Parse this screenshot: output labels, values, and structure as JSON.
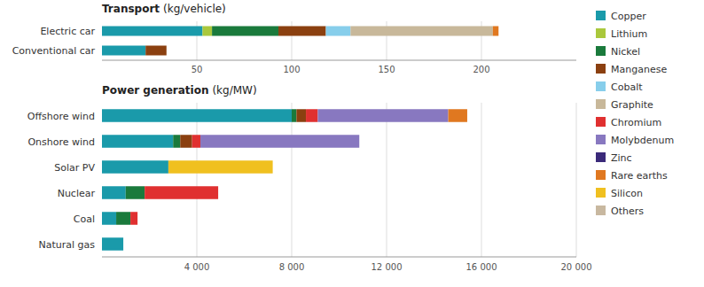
{
  "chart_data": [
    {
      "type": "bar",
      "orientation": "horizontal",
      "stacked": true,
      "grid": true,
      "legend": "right",
      "title": "Transport",
      "subtitle": "(kg/vehicle)",
      "categories": [
        "Electric car",
        "Conventional car"
      ],
      "series": [
        {
          "name": "Copper",
          "color": "#1a9aaa",
          "values": [
            53,
            23
          ]
        },
        {
          "name": "Lithium",
          "color": "#aac83c",
          "values": [
            5,
            0
          ]
        },
        {
          "name": "Nickel",
          "color": "#1a7a3c",
          "values": [
            35,
            0
          ]
        },
        {
          "name": "Manganese",
          "color": "#8b4010",
          "values": [
            25,
            11
          ]
        },
        {
          "name": "Cobalt",
          "color": "#87ceeb",
          "values": [
            13,
            0
          ]
        },
        {
          "name": "Graphite",
          "color": "#c8b89a",
          "values": [
            75,
            0
          ]
        },
        {
          "name": "Chromium",
          "color": "#e03030",
          "values": [
            0,
            0
          ]
        },
        {
          "name": "Molybdenum",
          "color": "#8878c0",
          "values": [
            0,
            0
          ]
        },
        {
          "name": "Zinc",
          "color": "#3b2a7a",
          "values": [
            0,
            0
          ]
        },
        {
          "name": "Rare earths",
          "color": "#e07820",
          "values": [
            3,
            0
          ]
        },
        {
          "name": "Silicon",
          "color": "#f0c020",
          "values": [
            0,
            0
          ]
        },
        {
          "name": "Others",
          "color": "#c8b8a0",
          "values": [
            0,
            0
          ]
        }
      ],
      "xlim": [
        0,
        250
      ],
      "xticks": [
        50,
        100,
        150,
        200
      ]
    },
    {
      "type": "bar",
      "orientation": "horizontal",
      "stacked": true,
      "grid": true,
      "title": "Power generation",
      "subtitle": "(kg/MW)",
      "categories": [
        "Offshore wind",
        "Onshore wind",
        "Solar PV",
        "Nuclear",
        "Coal",
        "Natural gas"
      ],
      "series": [
        {
          "name": "Copper",
          "color": "#1a9aaa",
          "values": [
            8000,
            3000,
            2800,
            1000,
            600,
            900
          ]
        },
        {
          "name": "Lithium",
          "color": "#aac83c",
          "values": [
            0,
            0,
            0,
            0,
            0,
            0
          ]
        },
        {
          "name": "Nickel",
          "color": "#1a7a3c",
          "values": [
            200,
            300,
            0,
            800,
            600,
            0
          ]
        },
        {
          "name": "Manganese",
          "color": "#8b4010",
          "values": [
            400,
            500,
            0,
            0,
            0,
            0
          ]
        },
        {
          "name": "Cobalt",
          "color": "#87ceeb",
          "values": [
            0,
            0,
            0,
            0,
            0,
            0
          ]
        },
        {
          "name": "Graphite",
          "color": "#c8b89a",
          "values": [
            0,
            0,
            0,
            0,
            0,
            0
          ]
        },
        {
          "name": "Chromium",
          "color": "#e03030",
          "values": [
            500,
            350,
            0,
            3100,
            300,
            0
          ]
        },
        {
          "name": "Molybdenum",
          "color": "#8878c0",
          "values": [
            5500,
            6700,
            0,
            0,
            0,
            0
          ]
        },
        {
          "name": "Zinc",
          "color": "#3b2a7a",
          "values": [
            0,
            0,
            0,
            0,
            0,
            0
          ]
        },
        {
          "name": "Rare earths",
          "color": "#e07820",
          "values": [
            800,
            0,
            0,
            0,
            0,
            0
          ]
        },
        {
          "name": "Silicon",
          "color": "#f0c020",
          "values": [
            0,
            0,
            4400,
            0,
            0,
            0
          ]
        },
        {
          "name": "Others",
          "color": "#c8b8a0",
          "values": [
            0,
            0,
            0,
            0,
            0,
            0
          ]
        }
      ],
      "xlim": [
        0,
        20000
      ],
      "xticks": [
        {
          "value": 4000,
          "label": "4 000"
        },
        {
          "value": 8000,
          "label": "8 000"
        },
        {
          "value": 12000,
          "label": "12 000"
        },
        {
          "value": 16000,
          "label": "16 000"
        },
        {
          "value": 20000,
          "label": "20 000"
        }
      ]
    }
  ]
}
